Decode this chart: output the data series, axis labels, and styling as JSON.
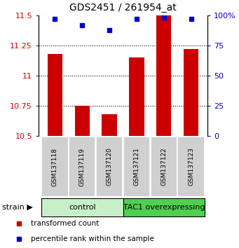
{
  "title": "GDS2451 / 261954_at",
  "samples": [
    "GSM137118",
    "GSM137119",
    "GSM137120",
    "GSM137121",
    "GSM137122",
    "GSM137123"
  ],
  "transformed_counts": [
    11.18,
    10.75,
    10.68,
    11.15,
    11.5,
    11.22
  ],
  "percentile_ranks": [
    97,
    92,
    88,
    97,
    98,
    97
  ],
  "ylim_left": [
    10.5,
    11.5
  ],
  "ylim_right": [
    0,
    100
  ],
  "yticks_left": [
    10.5,
    10.75,
    11.0,
    11.25,
    11.5
  ],
  "yticks_right": [
    0,
    25,
    50,
    75,
    100
  ],
  "ytick_labels_left": [
    "10.5",
    "10.75",
    "11",
    "11.25",
    "11.5"
  ],
  "ytick_labels_right": [
    "0",
    "25",
    "50",
    "75",
    "100%"
  ],
  "groups": [
    {
      "label": "control",
      "indices": [
        0,
        1,
        2
      ],
      "color": "#c8f0c8"
    },
    {
      "label": "TAC1 overexpressing",
      "indices": [
        3,
        4,
        5
      ],
      "color": "#50d050"
    }
  ],
  "bar_color": "#cc0000",
  "dot_color": "#0000cc",
  "bg_color": "#ffffff",
  "tick_bg": "#d0d0d0",
  "left_tick_color": "#cc0000",
  "right_tick_color": "#0000cc",
  "legend_items": [
    {
      "color": "#cc0000",
      "label": "transformed count"
    },
    {
      "color": "#0000cc",
      "label": "percentile rank within the sample"
    }
  ],
  "strain_label": "strain",
  "arrow_symbol": "▶"
}
